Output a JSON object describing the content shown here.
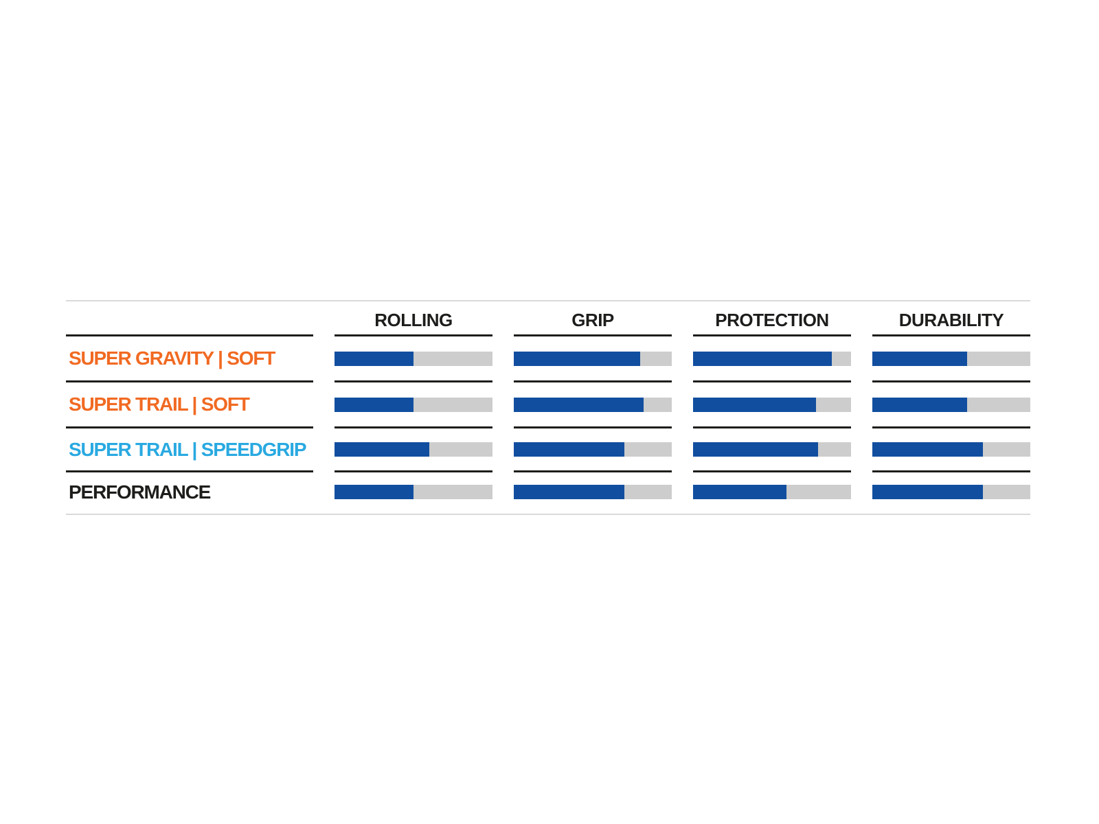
{
  "colors": {
    "bar_fill": "#114e9f",
    "bar_track": "#cdcdcd",
    "line_dark": "#1d1d1b",
    "rule_light": "#d9d9d9",
    "label_orange": "#f16a22",
    "label_cyan": "#29a9e1",
    "label_black": "#1d1d1b",
    "background": "#ffffff"
  },
  "chart_data": {
    "type": "table",
    "columns": [
      "ROLLING",
      "GRIP",
      "PROTECTION",
      "DURABILITY"
    ],
    "value_scale": "percent of full bar, 0-100, estimated from pixel measurement",
    "rows": [
      {
        "label": "SUPER GRAVITY | SOFT",
        "color": "#f16a22",
        "values": [
          50,
          80,
          88,
          60
        ]
      },
      {
        "label": "SUPER TRAIL | SOFT",
        "color": "#f16a22",
        "values": [
          50,
          82,
          78,
          60
        ]
      },
      {
        "label": "SUPER TRAIL | SPEEDGRIP",
        "color": "#29a9e1",
        "values": [
          60,
          70,
          79,
          70
        ]
      },
      {
        "label": "PERFORMANCE",
        "color": "#1d1d1b",
        "values": [
          50,
          70,
          59,
          70
        ]
      }
    ],
    "layout": {
      "bar_style": "horizontal filled track",
      "grid": "off",
      "legend": "none",
      "row_separators": "dark line per column segment",
      "outer_rules": "light gray top and bottom"
    }
  }
}
